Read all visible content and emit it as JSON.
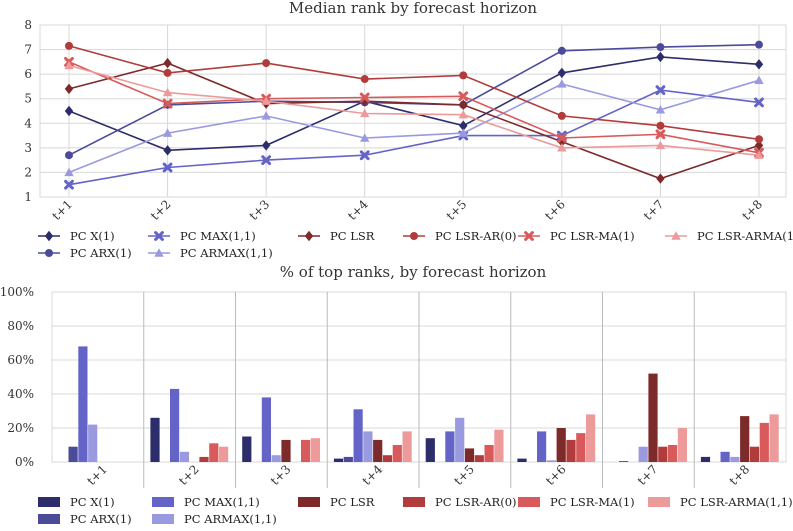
{
  "chart_data": [
    {
      "type": "line",
      "title": "Median rank by forecast horizon",
      "categories": [
        "t+1",
        "t+2",
        "t+3",
        "t+4",
        "t+5",
        "t+6",
        "t+7",
        "t+8"
      ],
      "ylim": [
        1,
        8
      ],
      "yticks": [
        "1",
        "2",
        "3",
        "4",
        "5",
        "6",
        "7",
        "8"
      ],
      "grid": true,
      "series": [
        {
          "name": "PC X(1)",
          "color": "#2d2d6b",
          "marker": "diamond",
          "values": [
            4.5,
            2.9,
            3.1,
            4.9,
            3.9,
            6.05,
            6.7,
            6.4
          ]
        },
        {
          "name": "PC ARX(1)",
          "color": "#4b4b9a",
          "marker": "circle",
          "values": [
            2.7,
            4.75,
            4.9,
            4.85,
            4.75,
            6.95,
            7.1,
            7.2
          ]
        },
        {
          "name": "PC MAX(1,1)",
          "color": "#6464c8",
          "marker": "x",
          "values": [
            1.5,
            2.2,
            2.5,
            2.7,
            3.5,
            3.5,
            5.35,
            4.85
          ]
        },
        {
          "name": "PC ARMAX(1,1)",
          "color": "#9a9ae0",
          "marker": "triangle",
          "values": [
            2.0,
            3.6,
            4.3,
            3.4,
            3.6,
            5.6,
            4.55,
            5.75
          ]
        },
        {
          "name": "PC LSR",
          "color": "#7d2a2a",
          "marker": "diamond",
          "values": [
            5.4,
            6.45,
            4.8,
            4.9,
            4.75,
            3.25,
            1.75,
            3.1
          ]
        },
        {
          "name": "PC LSR-AR(0)",
          "color": "#b23c3c",
          "marker": "circle",
          "values": [
            7.15,
            6.05,
            6.45,
            5.8,
            5.95,
            4.3,
            3.9,
            3.35
          ]
        },
        {
          "name": "PC LSR-MA(1)",
          "color": "#d95a5a",
          "marker": "x",
          "values": [
            6.5,
            4.8,
            5.0,
            5.05,
            5.1,
            3.4,
            3.55,
            2.8
          ]
        },
        {
          "name": "PC LSR-ARMA(1,1)",
          "color": "#ec9a9a",
          "marker": "triangle",
          "values": [
            6.35,
            5.25,
            4.9,
            4.4,
            4.35,
            3.0,
            3.1,
            2.7
          ]
        }
      ]
    },
    {
      "type": "bar",
      "title": "% of top ranks, by forecast horizon",
      "categories": [
        "t+1",
        "t+2",
        "t+3",
        "t+4",
        "t+5",
        "t+6",
        "t+7",
        "t+8"
      ],
      "ylim": [
        0,
        100
      ],
      "yticks": [
        "0%",
        "20%",
        "40%",
        "60%",
        "80%",
        "100%"
      ],
      "grid": true,
      "series": [
        {
          "name": "PC X(1)",
          "color": "#2d2d6b",
          "values": [
            0,
            26,
            15,
            2,
            14,
            2,
            0,
            3
          ]
        },
        {
          "name": "PC ARX(1)",
          "color": "#4b4b9a",
          "values": [
            9,
            0,
            0,
            3,
            0,
            0,
            0.5,
            0
          ]
        },
        {
          "name": "PC MAX(1,1)",
          "color": "#6464c8",
          "values": [
            68,
            43,
            38,
            31,
            18,
            18,
            0,
            6
          ]
        },
        {
          "name": "PC ARMAX(1,1)",
          "color": "#9a9ae0",
          "values": [
            22,
            6,
            4,
            18,
            26,
            1,
            9,
            3
          ]
        },
        {
          "name": "PC LSR",
          "color": "#7d2a2a",
          "values": [
            0,
            0,
            13,
            13,
            8,
            20,
            52,
            27
          ]
        },
        {
          "name": "PC LSR-AR(0)",
          "color": "#b23c3c",
          "values": [
            0,
            3,
            0,
            4,
            4,
            13,
            9,
            9
          ]
        },
        {
          "name": "PC LSR-MA(1)",
          "color": "#d95a5a",
          "values": [
            0,
            11,
            13,
            10,
            10,
            17,
            10,
            23
          ]
        },
        {
          "name": "PC LSR-ARMA(1,1)",
          "color": "#ec9a9a",
          "values": [
            0,
            9,
            14,
            18,
            19,
            28,
            20,
            28
          ]
        }
      ]
    }
  ]
}
